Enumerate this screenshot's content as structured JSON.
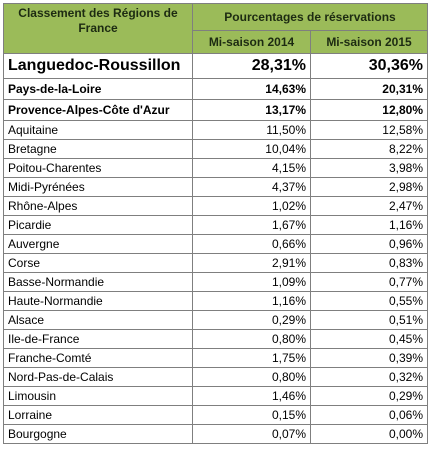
{
  "table": {
    "header": {
      "region": "Classement des Régions de France",
      "group": "Pourcentages de réservations",
      "col1": "Mi-saison 2014",
      "col2": "Mi-saison 2015"
    },
    "rows": [
      [
        "Languedoc-Roussillon",
        "28,31%",
        "30,36%"
      ],
      [
        "Pays-de-la-Loire",
        "14,63%",
        "20,31%"
      ],
      [
        "Provence-Alpes-Côte d'Azur",
        "13,17%",
        "12,80%"
      ],
      [
        "Aquitaine",
        "11,50%",
        "12,58%"
      ],
      [
        "Bretagne",
        "10,04%",
        "8,22%"
      ],
      [
        "Poitou-Charentes",
        "4,15%",
        "3,98%"
      ],
      [
        "Midi-Pyrénées",
        "4,37%",
        "2,98%"
      ],
      [
        "Rhône-Alpes",
        "1,02%",
        "2,47%"
      ],
      [
        "Picardie",
        "1,67%",
        "1,16%"
      ],
      [
        "Auvergne",
        "0,66%",
        "0,96%"
      ],
      [
        "Corse",
        "2,91%",
        "0,83%"
      ],
      [
        "Basse-Normandie",
        "1,09%",
        "0,77%"
      ],
      [
        "Haute-Normandie",
        "1,16%",
        "0,55%"
      ],
      [
        "Alsace",
        "0,29%",
        "0,51%"
      ],
      [
        "Ile-de-France",
        "0,80%",
        "0,45%"
      ],
      [
        "Franche-Comté",
        "1,75%",
        "0,39%"
      ],
      [
        "Nord-Pas-de-Calais",
        "0,80%",
        "0,32%"
      ],
      [
        "Limousin",
        "1,46%",
        "0,29%"
      ],
      [
        "Lorraine",
        "0,15%",
        "0,06%"
      ],
      [
        "Bourgogne",
        "0,07%",
        "0,00%"
      ]
    ]
  }
}
